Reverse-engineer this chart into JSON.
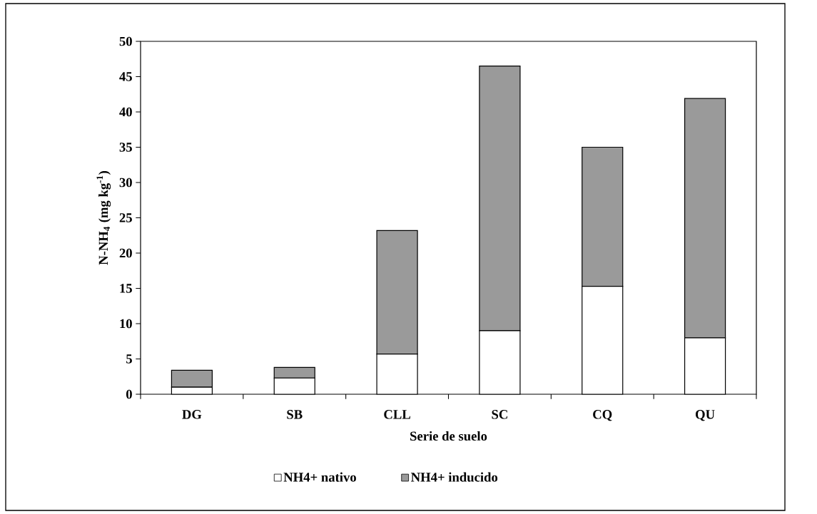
{
  "chart_data": {
    "type": "bar",
    "stacked": true,
    "xlabel": "Serie de suelo",
    "ylabel": "N-NH$_{4}$ (mg kg$^{-1}$)",
    "categories": [
      "DG",
      "SB",
      "CLL",
      "SC",
      "CQ",
      "QU"
    ],
    "series": [
      {
        "name": "NH4+ nativo",
        "color": "#ffffff",
        "values": [
          1.0,
          2.3,
          5.7,
          9.0,
          15.3,
          8.0
        ]
      },
      {
        "name": "NH4+ inducido",
        "color": "#9a9a9a",
        "values": [
          2.4,
          1.5,
          17.5,
          37.5,
          19.7,
          33.9
        ]
      }
    ],
    "ylim": [
      0,
      50
    ],
    "yticks": [
      0,
      5,
      10,
      15,
      20,
      25,
      30,
      35,
      40,
      45,
      50
    ],
    "legend": "bottom",
    "grid": false
  }
}
